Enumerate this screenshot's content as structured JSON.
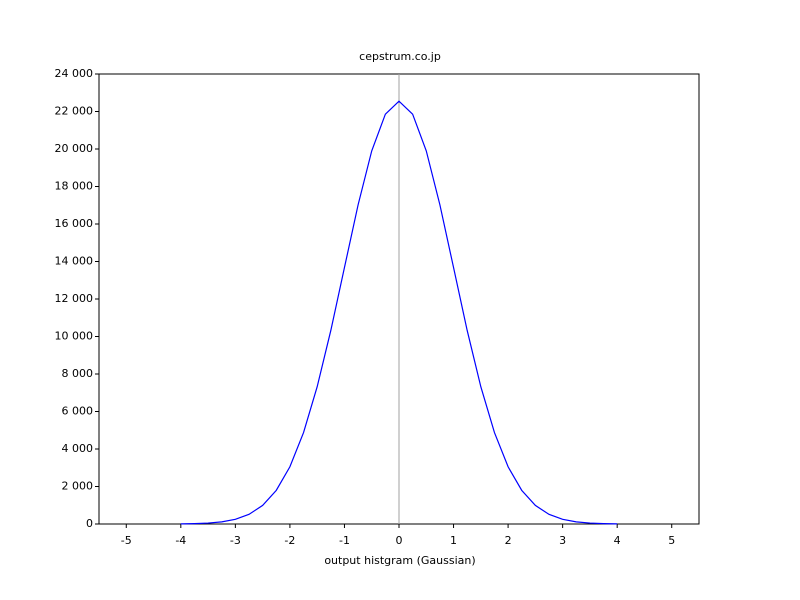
{
  "chart_data": {
    "type": "line",
    "title": "cepstrum.co.jp",
    "x_label": "output histgram (Gaussian)",
    "x": [
      -4,
      -3.75,
      -3.5,
      -3.25,
      -3,
      -2.75,
      -2.5,
      -2.25,
      -2,
      -1.75,
      -1.5,
      -1.25,
      -1,
      -0.75,
      -0.5,
      -0.25,
      0,
      0.25,
      0.5,
      0.75,
      1,
      1.25,
      1.5,
      1.75,
      2,
      2.25,
      2.5,
      2.75,
      3,
      3.25,
      3.5,
      3.75,
      4
    ],
    "series": [
      {
        "color": "#0000ff",
        "values": [
          7,
          20,
          49,
          115,
          250,
          514,
          990,
          1795,
          3052,
          4877,
          7322,
          10323,
          13677,
          17021,
          19900,
          21856,
          22550,
          21856,
          19900,
          17021,
          13677,
          10323,
          7322,
          4877,
          3052,
          1795,
          990,
          514,
          250,
          115,
          49,
          20,
          7
        ]
      }
    ],
    "xlim": [
      -5.5,
      5.5
    ],
    "ylim": [
      0,
      24000
    ],
    "xticks": [
      -5,
      -4,
      -3,
      -2,
      -1,
      0,
      1,
      2,
      3,
      4,
      5
    ],
    "yticks": [
      0,
      {
        "value": 2000,
        "label": "2 000"
      },
      {
        "value": 4000,
        "label": "4 000"
      },
      {
        "value": 6000,
        "label": "6 000"
      },
      {
        "value": 8000,
        "label": "8 000"
      },
      {
        "value": 10000,
        "label": "10 000"
      },
      {
        "value": 12000,
        "label": "12 000"
      },
      {
        "value": 14000,
        "label": "14 000"
      },
      {
        "value": 16000,
        "label": "16 000"
      },
      {
        "value": 18000,
        "label": "18 000"
      },
      {
        "value": 20000,
        "label": "20 000"
      },
      {
        "value": 22000,
        "label": "22 000"
      },
      {
        "value": 24000,
        "label": "24 000"
      }
    ],
    "vline": 0,
    "vline_color": "#a0a0a0"
  }
}
